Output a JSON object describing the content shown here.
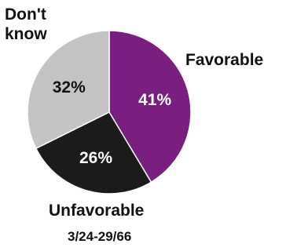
{
  "chart_data": {
    "type": "pie",
    "slices": [
      {
        "label": "Favorable",
        "value": 41,
        "display": "41%",
        "color": "#7a1f80",
        "text_color": "#ffffff"
      },
      {
        "label": "Unfavorable",
        "value": 26,
        "display": "26%",
        "color": "#1c1a1b",
        "text_color": "#ffffff"
      },
      {
        "label": "Don't know",
        "value": 32,
        "display": "32%",
        "color": "#c4c4c4",
        "text_color": "#111111"
      }
    ],
    "date": "3/24-29/66"
  }
}
